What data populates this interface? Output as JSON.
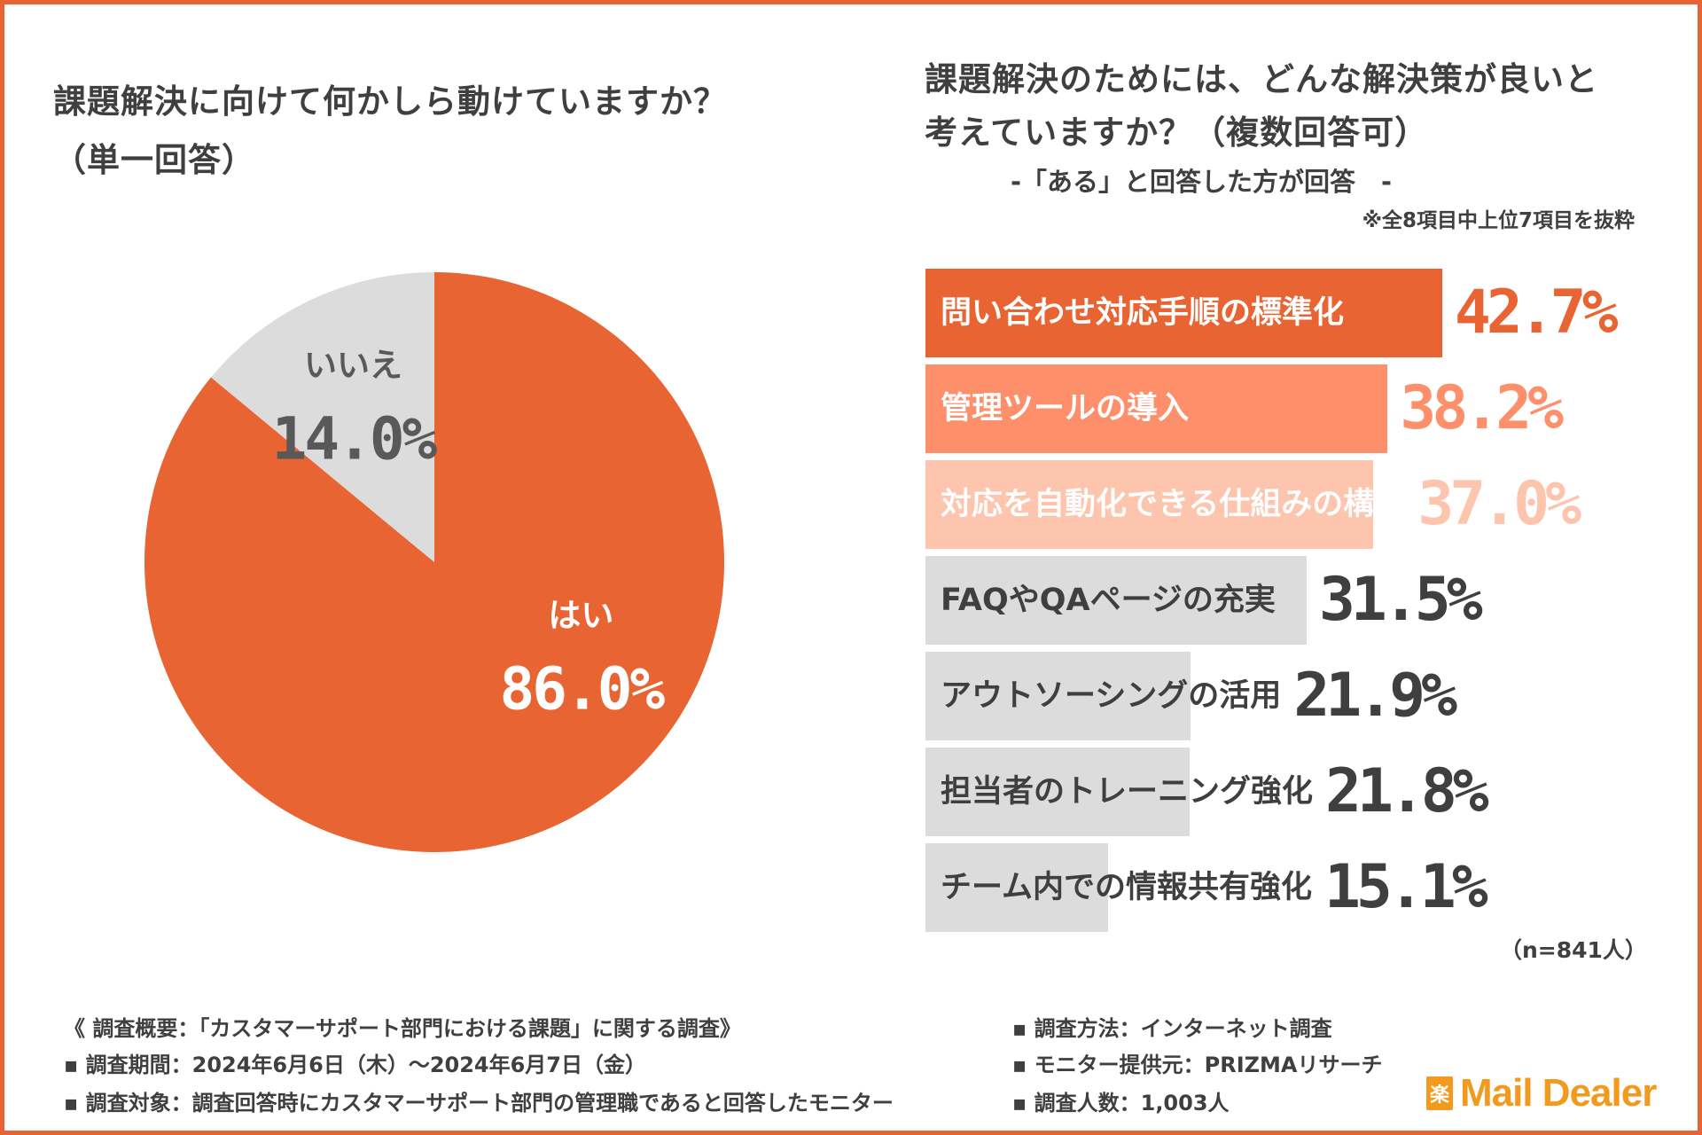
{
  "left_title": {
    "line1": "課題解決に向けて何かしら動けていますか？",
    "line2": "（単一回答）"
  },
  "right_title": {
    "line1": "課題解決のためには、どんな解決策が良いと",
    "line2": "考えていますか？（複数回答可）",
    "subtitle": "-「ある」と回答した方が回答　-",
    "note": "※全8項目中上位7項目を抜粋"
  },
  "colors": {
    "accent": "#e86433",
    "accent_light": "#fd8f6b",
    "accent_pale": "#fdc4ae",
    "gray_bar": "#dcdcdc",
    "gray_text": "#3f3f3f",
    "pie_gray_text": "#595959",
    "logo": "#f39a1e"
  },
  "chart_data": [
    {
      "type": "pie",
      "title": "課題解決に向けて何かしら動けていますか？（単一回答）",
      "slices": [
        {
          "label": "はい",
          "value": 86.0,
          "value_label": "86.0%",
          "color": "#e86433",
          "text_color": "#ffffff"
        },
        {
          "label": "いいえ",
          "value": 14.0,
          "value_label": "14.0%",
          "color": "#dcdcdc",
          "text_color": "#595959"
        }
      ]
    },
    {
      "type": "bar",
      "orientation": "horizontal",
      "title": "課題解決のためには、どんな解決策が良いと考えていますか？（複数回答可）",
      "xlim": [
        0,
        100
      ],
      "categories": [
        "問い合わせ対応手順の標準化",
        "管理ツールの導入",
        "対応を自動化できる仕組みの構築",
        "FAQやQAページの充実",
        "アウトソーシングの活用",
        "担当者のトレーニング強化",
        "チーム内での情報共有強化"
      ],
      "values": [
        42.7,
        38.2,
        37.0,
        31.5,
        21.9,
        21.8,
        15.1
      ],
      "value_labels": [
        "42.7%",
        "38.2%",
        "37.0%",
        "31.5%",
        "21.9%",
        "21.8%",
        "15.1%"
      ],
      "bar_colors": [
        "#e86433",
        "#fd8f6b",
        "#fdc4ae",
        "#dcdcdc",
        "#dcdcdc",
        "#dcdcdc",
        "#dcdcdc"
      ],
      "label_colors": [
        "#ffffff",
        "#ffffff",
        "#ffffff",
        "#3f3f3f",
        "#3f3f3f",
        "#3f3f3f",
        "#3f3f3f"
      ],
      "value_colors": [
        "#e86433",
        "#fd8f6b",
        "#fdc4ae",
        "#3f3f3f",
        "#3f3f3f",
        "#3f3f3f",
        "#3f3f3f"
      ],
      "sample_note": "（n=841人）"
    }
  ],
  "footer": {
    "overview": "《 調査概要：「カスタマーサポート部門における課題」に関する調査》",
    "period": "▪ 調査期間：2024年6月6日（木）～2024年6月7日（金）",
    "target": "▪ 調査対象：調査回答時にカスタマーサポート部門の管理職であると回答したモニター",
    "method": "▪ 調査方法：インターネット調査",
    "provider": "▪ モニター提供元：PRIZMAリサーチ",
    "count": "▪ 調査人数：1,003人"
  },
  "logo": {
    "mark": "楽",
    "text": "Mail Dealer"
  }
}
